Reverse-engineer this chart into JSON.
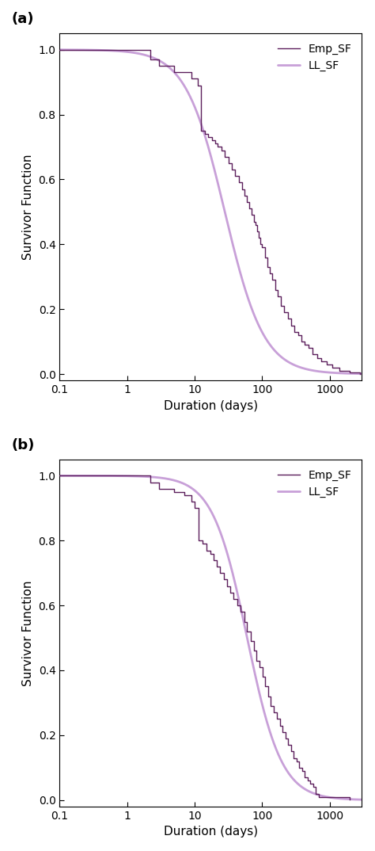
{
  "panel_a_label": "(a)",
  "panel_b_label": "(b)",
  "xlabel": "Duration (days)",
  "ylabel": "Survivor Function",
  "xlim": [
    0.1,
    3000
  ],
  "ylim": [
    -0.02,
    1.05
  ],
  "yticks": [
    0.0,
    0.2,
    0.4,
    0.6,
    0.8,
    1.0
  ],
  "xticks": [
    0.1,
    1,
    10,
    100,
    1000
  ],
  "xtick_labels": [
    "0.1",
    "1",
    "10",
    "100",
    "1000"
  ],
  "emp_color": "#5C1F5C",
  "ll_color": "#C8A0D8",
  "emp_lw": 1.0,
  "ll_lw": 2.0,
  "legend_labels": [
    "Emp_SF",
    "LL_SF"
  ],
  "bg_color": "white",
  "panel_a": {
    "ll_sf_scale": 28,
    "ll_sf_shape": 1.5,
    "emp_x": [
      0.1,
      2.2,
      3.0,
      5.0,
      7.0,
      9.0,
      11.0,
      12.5,
      14.0,
      16.0,
      18.0,
      20.0,
      22.0,
      25.0,
      28.0,
      32.0,
      36.0,
      40.0,
      45.0,
      50.0,
      55.0,
      60.0,
      65.0,
      70.0,
      75.0,
      80.0,
      85.0,
      90.0,
      95.0,
      100.0,
      110.0,
      120.0,
      130.0,
      140.0,
      155.0,
      170.0,
      190.0,
      210.0,
      240.0,
      270.0,
      300.0,
      340.0,
      380.0,
      430.0,
      490.0,
      560.0,
      650.0,
      750.0,
      900.0,
      1100.0,
      1400.0,
      2000.0,
      2800.0
    ],
    "emp_y": [
      1.0,
      0.97,
      0.95,
      0.93,
      0.93,
      0.91,
      0.89,
      0.75,
      0.74,
      0.73,
      0.72,
      0.71,
      0.7,
      0.69,
      0.67,
      0.65,
      0.63,
      0.61,
      0.59,
      0.57,
      0.55,
      0.53,
      0.51,
      0.49,
      0.47,
      0.46,
      0.44,
      0.42,
      0.4,
      0.39,
      0.36,
      0.33,
      0.31,
      0.29,
      0.26,
      0.24,
      0.21,
      0.19,
      0.17,
      0.15,
      0.13,
      0.12,
      0.1,
      0.09,
      0.08,
      0.06,
      0.05,
      0.04,
      0.03,
      0.02,
      0.01,
      0.005,
      0.001
    ]
  },
  "panel_b": {
    "ll_sf_scale": 60,
    "ll_sf_shape": 1.7,
    "emp_x": [
      0.1,
      2.2,
      3.0,
      5.0,
      7.0,
      9.0,
      10.0,
      11.5,
      13.0,
      15.0,
      17.0,
      19.0,
      21.0,
      24.0,
      27.0,
      30.0,
      34.0,
      38.0,
      43.0,
      48.0,
      54.0,
      60.0,
      67.0,
      75.0,
      83.0,
      92.0,
      101.0,
      111.0,
      122.0,
      135.0,
      150.0,
      165.0,
      182.0,
      200.0,
      220.0,
      242.0,
      266.0,
      293.0,
      322.0,
      355.0,
      390.0,
      430.0,
      473.0,
      520.0,
      572.0,
      629.0,
      692.0,
      2000.0
    ],
    "emp_y": [
      1.0,
      0.98,
      0.96,
      0.95,
      0.94,
      0.92,
      0.9,
      0.8,
      0.79,
      0.77,
      0.76,
      0.74,
      0.72,
      0.7,
      0.68,
      0.66,
      0.64,
      0.62,
      0.6,
      0.58,
      0.55,
      0.52,
      0.49,
      0.46,
      0.43,
      0.41,
      0.38,
      0.35,
      0.32,
      0.29,
      0.27,
      0.25,
      0.23,
      0.21,
      0.19,
      0.17,
      0.15,
      0.13,
      0.12,
      0.1,
      0.09,
      0.07,
      0.06,
      0.05,
      0.04,
      0.02,
      0.01,
      0.001
    ]
  }
}
